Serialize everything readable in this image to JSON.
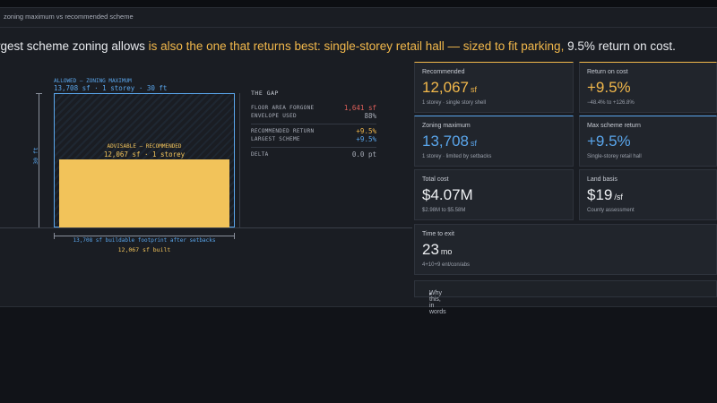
{
  "header": {
    "title": "zoning maximum vs recommended scheme"
  },
  "headline": {
    "part1": "rgest scheme zoning allows",
    "part2": " is also the one that returns best: single-storey retail hall — sized to fit parking, ",
    "part3": "9.5%",
    "part4": " return on cost."
  },
  "chart": {
    "allowed_caption": "ALLOWED — ZONING MAXIMUM",
    "allowed_value": "13,708 sf · 1 storey · 30 ft",
    "advisable_caption": "ADVISABLE — RECOMMENDED",
    "advisable_value": "12,067 sf · 1 storey",
    "height_label": "30 ft",
    "footprint_label": "13,708 sf buildable footprint after setbacks",
    "built_label": "12,067 sf built",
    "allowed_sf": 13708,
    "recommended_sf": 12067,
    "colors": {
      "allowed": "#5aa6ec",
      "recommended": "#f2c35a"
    }
  },
  "gap": {
    "title": "THE GAP",
    "rows": [
      {
        "k": "FLOOR AREA FORGONE",
        "v": "1,641 sf",
        "color": "#e0605a"
      },
      {
        "k": "ENVELOPE USED",
        "v": "88%",
        "color": "#a8adb8"
      },
      {
        "k": "RECOMMENDED RETURN",
        "v": "+9.5%",
        "color": "#f2b84b"
      },
      {
        "k": "LARGEST SCHEME",
        "v": "+9.5%",
        "color": "#5aa6ec"
      },
      {
        "k": "DELTA",
        "v": "0.0 pt",
        "color": "#a8adb8"
      }
    ]
  },
  "cards": {
    "recommended": {
      "label": "Recommended",
      "value": "12,067",
      "unit": "sf",
      "sub": "1 storey · single story shell"
    },
    "return_on_cost": {
      "label": "Return on cost",
      "value": "+9.5%",
      "sub": "−48.4% to +126.8%"
    },
    "zoning_max": {
      "label": "Zoning maximum",
      "value": "13,708",
      "unit": "sf",
      "sub": "1 storey · limited by setbacks"
    },
    "max_scheme": {
      "label": "Max scheme return",
      "value": "+9.5%",
      "sub": "Single-storey retail hall"
    },
    "total_cost": {
      "label": "Total cost",
      "value": "$4.07M",
      "sub": "$2.98M to $5.58M"
    },
    "land_basis": {
      "label": "Land basis",
      "value": "$19",
      "unit": "/sf",
      "sub": "County assessment"
    },
    "time_to_exit": {
      "label": "Time to exit",
      "value": "23",
      "unit": "mo",
      "sub": "4+10+9 ent/con/abs"
    }
  },
  "why": {
    "label": "Why this, in words",
    "icon": "chevron-right-icon"
  }
}
